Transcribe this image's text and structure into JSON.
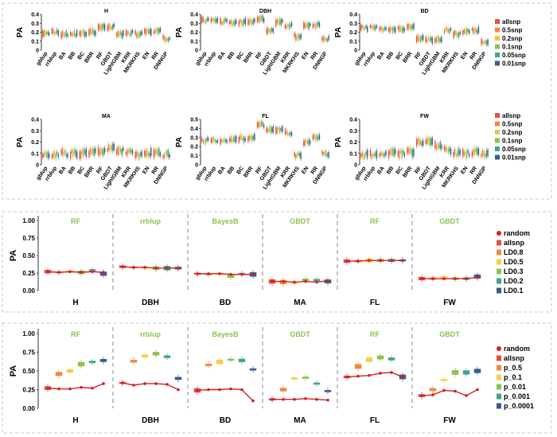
{
  "chart_data": [
    {
      "panel": "A",
      "type": "boxplot-grid",
      "ylabel": "PA",
      "legend": {
        "position": "right",
        "entries": [
          "allsnp",
          "0.5snp",
          "0.2snp",
          "0.1snp",
          "0.05snp",
          "0.01snp"
        ]
      },
      "subplots": [
        {
          "title": "H",
          "ylim": [
            0,
            0.4
          ],
          "yticks": [
            0,
            0.1,
            0.2,
            0.3,
            0.4
          ],
          "methods": [
            "gblup",
            "rrblup",
            "BA",
            "BB",
            "BC",
            "BRR",
            "RF",
            "GBDT",
            "LightGBM",
            "KRR",
            "MKRKHS",
            "EN",
            "RR",
            "DNNGP"
          ],
          "values": [
            0.2,
            0.2,
            0.18,
            0.18,
            0.19,
            0.2,
            0.25,
            0.26,
            0.18,
            0.19,
            0.18,
            0.2,
            0.21,
            0.13
          ]
        },
        {
          "title": "DBH",
          "ylim": [
            0,
            0.4
          ],
          "yticks": [
            0,
            0.1,
            0.2,
            0.3,
            0.4
          ],
          "methods": [
            "gblup",
            "rrblup",
            "BA",
            "BB",
            "BC",
            "BRR",
            "RF",
            "GBDT",
            "LightGBM",
            "KRR",
            "MKRKHS",
            "EN",
            "RR",
            "DNNGP"
          ],
          "values": [
            0.33,
            0.33,
            0.32,
            0.31,
            0.31,
            0.32,
            0.34,
            0.23,
            0.31,
            0.27,
            0.15,
            0.27,
            0.28,
            0.13
          ]
        },
        {
          "title": "BD",
          "ylim": [
            0,
            0.4
          ],
          "yticks": [
            0,
            0.1,
            0.2,
            0.3,
            0.4
          ],
          "methods": [
            "gblup",
            "rrblup",
            "BA",
            "BB",
            "BC",
            "BRR",
            "RF",
            "GBDT",
            "LightGBM",
            "KRR",
            "MKRKHS",
            "EN",
            "RR",
            "DNNGP"
          ],
          "values": [
            0.25,
            0.25,
            0.24,
            0.24,
            0.24,
            0.25,
            0.13,
            0.12,
            0.12,
            0.22,
            0.18,
            0.21,
            0.22,
            0.09
          ]
        },
        {
          "title": "MA",
          "ylim": [
            0,
            0.4
          ],
          "yticks": [
            0,
            0.1,
            0.2,
            0.3,
            0.4
          ],
          "methods": [
            "gblup",
            "rrblup",
            "BA",
            "BB",
            "BC",
            "BRR",
            "RF",
            "GBDT",
            "LightGBM",
            "KRR",
            "MKRKHS",
            "EN",
            "RR",
            "DNNGP"
          ],
          "values": [
            0.09,
            0.09,
            0.1,
            0.1,
            0.1,
            0.11,
            0.12,
            0.14,
            0.12,
            0.11,
            0.09,
            0.1,
            0.11,
            0.09
          ]
        },
        {
          "title": "FL",
          "ylim": [
            0,
            0.5
          ],
          "yticks": [
            0,
            0.1,
            0.2,
            0.3,
            0.4,
            0.5
          ],
          "methods": [
            "gblup",
            "rrblup",
            "BA",
            "BB",
            "BC",
            "BRR",
            "RF",
            "GBDT",
            "LightGBM",
            "KRR",
            "MKRKHS",
            "EN",
            "RR",
            "DNNGP"
          ],
          "values": [
            0.27,
            0.27,
            0.27,
            0.28,
            0.29,
            0.29,
            0.44,
            0.39,
            0.38,
            0.35,
            0.1,
            0.25,
            0.3,
            0.12
          ]
        },
        {
          "title": "FW",
          "ylim": [
            0,
            0.4
          ],
          "yticks": [
            0,
            0.1,
            0.2,
            0.3,
            0.4
          ],
          "methods": [
            "gblup",
            "rrblup",
            "BA",
            "BB",
            "BC",
            "BRR",
            "RF",
            "GBDT",
            "LightGBM",
            "KRR",
            "MKRKHS",
            "EN",
            "RR",
            "DNNGP"
          ],
          "values": [
            0.09,
            0.09,
            0.1,
            0.1,
            0.1,
            0.11,
            0.2,
            0.2,
            0.17,
            0.13,
            0.1,
            0.1,
            0.11,
            0.1
          ]
        }
      ]
    },
    {
      "panel": "B",
      "type": "boxplot-with-line",
      "ylabel": "PA",
      "ylim": [
        0,
        1.0
      ],
      "yticks": [
        "0.00",
        "0.25",
        "0.50",
        "0.75",
        "1.00"
      ],
      "legend": {
        "position": "right",
        "entries": [
          "random",
          "allsnp",
          "LD0.8",
          "LD0.5",
          "LD0.3",
          "LD0.2",
          "LD0.1"
        ]
      },
      "groups": [
        {
          "trait": "H",
          "method": "RF",
          "random": [
            0.27,
            0.26,
            0.27,
            0.26,
            0.27,
            0.26
          ],
          "boxes": [
            0.27,
            0.26,
            0.27,
            0.26,
            0.29,
            0.24
          ]
        },
        {
          "trait": "DBH",
          "method": "rrblup",
          "random": [
            0.34,
            0.33,
            0.33,
            0.32,
            0.32,
            0.32
          ],
          "boxes": [
            0.34,
            0.33,
            0.33,
            0.32,
            0.32,
            0.32
          ]
        },
        {
          "trait": "BD",
          "method": "BayesB",
          "random": [
            0.24,
            0.24,
            0.24,
            0.23,
            0.23,
            0.23
          ],
          "boxes": [
            0.24,
            0.23,
            0.24,
            0.21,
            0.24,
            0.23
          ]
        },
        {
          "trait": "MA",
          "method": "GBDT",
          "random": [
            0.13,
            0.13,
            0.12,
            0.13,
            0.12,
            0.14
          ],
          "boxes": [
            0.13,
            0.12,
            0.11,
            0.15,
            0.15,
            0.13
          ]
        },
        {
          "trait": "FL",
          "method": "RF",
          "random": [
            0.42,
            0.42,
            0.43,
            0.43,
            0.43,
            0.43
          ],
          "boxes": [
            0.42,
            0.42,
            0.43,
            0.43,
            0.43,
            0.43
          ]
        },
        {
          "trait": "FW",
          "method": "GBDT",
          "random": [
            0.17,
            0.17,
            0.17,
            0.17,
            0.17,
            0.19
          ],
          "boxes": [
            0.17,
            0.17,
            0.18,
            0.17,
            0.17,
            0.2
          ]
        }
      ]
    },
    {
      "panel": "C",
      "type": "boxplot-with-line",
      "ylabel": "PA",
      "ylim": [
        0,
        1.0
      ],
      "yticks": [
        "0.00",
        "0.25",
        "0.50",
        "0.75",
        "1.00"
      ],
      "legend": {
        "position": "right",
        "entries": [
          "random",
          "allsnp",
          "p_0.5",
          "p_0.1",
          "p_0.01",
          "p_0.001",
          "p_0.0001"
        ]
      },
      "groups": [
        {
          "trait": "H",
          "method": "RF",
          "random": [
            0.27,
            0.26,
            0.26,
            0.28,
            0.27,
            0.33
          ],
          "boxes": [
            0.27,
            0.46,
            0.5,
            0.59,
            0.62,
            0.64
          ]
        },
        {
          "trait": "DBH",
          "method": "rrblup",
          "random": [
            0.34,
            0.31,
            0.33,
            0.33,
            0.32,
            0.25
          ],
          "boxes": [
            0.34,
            0.63,
            0.7,
            0.73,
            0.69,
            0.4
          ]
        },
        {
          "trait": "BD",
          "method": "BayesB",
          "random": [
            0.24,
            0.25,
            0.25,
            0.26,
            0.25,
            0.1
          ],
          "boxes": [
            0.24,
            0.58,
            0.62,
            0.65,
            0.64,
            0.52
          ]
        },
        {
          "trait": "MA",
          "method": "GBDT",
          "random": [
            0.12,
            0.12,
            0.12,
            0.13,
            0.12,
            0.11
          ],
          "boxes": [
            0.12,
            0.25,
            0.4,
            0.41,
            0.33,
            0.23
          ]
        },
        {
          "trait": "FL",
          "method": "RF",
          "random": [
            0.42,
            0.43,
            0.44,
            0.47,
            0.48,
            0.42
          ],
          "boxes": [
            0.42,
            0.56,
            0.65,
            0.68,
            0.66,
            0.42
          ]
        },
        {
          "trait": "FW",
          "method": "GBDT",
          "random": [
            0.17,
            0.18,
            0.24,
            0.23,
            0.17,
            0.25
          ],
          "boxes": [
            0.17,
            0.25,
            0.38,
            0.48,
            0.48,
            0.5
          ]
        }
      ]
    }
  ],
  "colors": {
    "random": "#d42020",
    "panelA": [
      "#e2504b",
      "#f0883f",
      "#e8c64b",
      "#8cc152",
      "#3ea58e",
      "#3b5a8a"
    ],
    "panelBC": [
      "#e2504b",
      "#f0883f",
      "#f2d04c",
      "#8cc152",
      "#3ea58e",
      "#3b5a8a"
    ],
    "subtitle": "#8cc152",
    "frame": "#c8c8c8",
    "separator": "#888888"
  }
}
